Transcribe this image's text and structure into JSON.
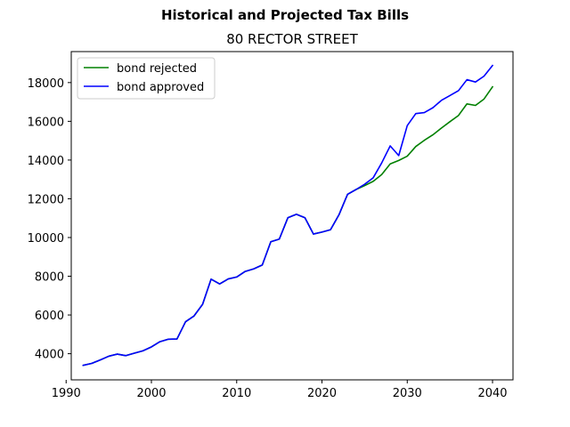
{
  "figure": {
    "suptitle": "Historical and Projected Tax Bills"
  },
  "chart_data": {
    "type": "line",
    "title": "80 RECTOR STREET",
    "xlabel": "",
    "ylabel": "",
    "xlim": [
      1990.6,
      2042.4
    ],
    "ylim": [
      2650,
      19600
    ],
    "xticks": [
      1990,
      2000,
      2010,
      2020,
      2030,
      2040
    ],
    "yticks": [
      4000,
      6000,
      8000,
      10000,
      12000,
      14000,
      16000,
      18000
    ],
    "grid": false,
    "legend_position": "upper-left",
    "series": [
      {
        "name": "bond rejected",
        "color": "#008000",
        "x": [
          1992,
          1993,
          1994,
          1995,
          1996,
          1997,
          1998,
          1999,
          2000,
          2001,
          2002,
          2003,
          2004,
          2005,
          2006,
          2007,
          2008,
          2009,
          2010,
          2011,
          2012,
          2013,
          2014,
          2015,
          2016,
          2017,
          2018,
          2019,
          2020,
          2021,
          2022,
          2023,
          2024,
          2025,
          2026,
          2027,
          2028,
          2029,
          2030,
          2031,
          2032,
          2033,
          2034,
          2035,
          2036,
          2037,
          2038,
          2039,
          2040
        ],
        "values": [
          3400,
          3500,
          3680,
          3870,
          3980,
          3900,
          4030,
          4150,
          4350,
          4620,
          4750,
          4760,
          5650,
          5950,
          6550,
          7850,
          7600,
          7860,
          7960,
          8250,
          8380,
          8580,
          9780,
          9920,
          11020,
          11200,
          11020,
          10180,
          10280,
          10400,
          11180,
          12230,
          12480,
          12680,
          12900,
          13250,
          13800,
          13980,
          14200,
          14700,
          15020,
          15300,
          15650,
          15980,
          16300,
          16900,
          16820,
          17150,
          17780
        ]
      },
      {
        "name": "bond approved",
        "color": "#0000ff",
        "x": [
          1992,
          1993,
          1994,
          1995,
          1996,
          1997,
          1998,
          1999,
          2000,
          2001,
          2002,
          2003,
          2004,
          2005,
          2006,
          2007,
          2008,
          2009,
          2010,
          2011,
          2012,
          2013,
          2014,
          2015,
          2016,
          2017,
          2018,
          2019,
          2020,
          2021,
          2022,
          2023,
          2024,
          2025,
          2026,
          2027,
          2028,
          2029,
          2030,
          2031,
          2032,
          2033,
          2034,
          2035,
          2036,
          2037,
          2038,
          2039,
          2040
        ],
        "values": [
          3400,
          3500,
          3680,
          3870,
          3980,
          3900,
          4030,
          4150,
          4350,
          4620,
          4750,
          4760,
          5650,
          5950,
          6550,
          7850,
          7600,
          7860,
          7960,
          8250,
          8380,
          8580,
          9780,
          9920,
          11020,
          11200,
          11020,
          10180,
          10280,
          10400,
          11180,
          12230,
          12480,
          12750,
          13080,
          13850,
          14730,
          14230,
          15780,
          16400,
          16450,
          16700,
          17080,
          17330,
          17580,
          18150,
          18030,
          18330,
          18880
        ]
      }
    ]
  }
}
